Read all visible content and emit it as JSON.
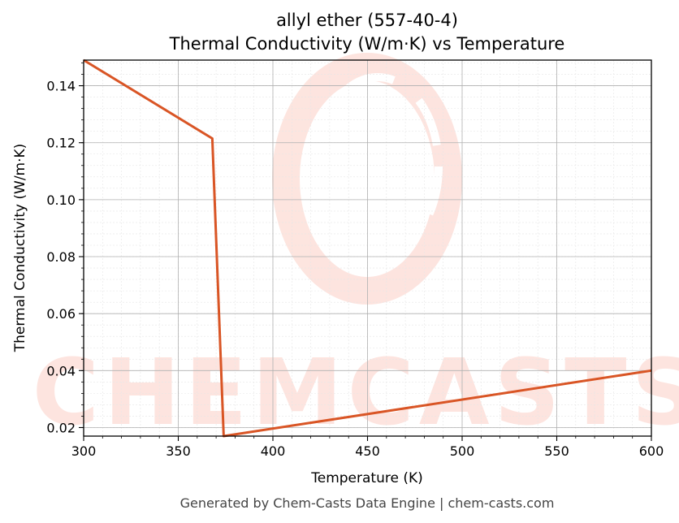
{
  "chart_data": {
    "type": "line",
    "title_line1": "allyl ether (557-40-4)",
    "title_line2": "Thermal Conductivity (W/m·K) vs Temperature",
    "xlabel": "Temperature (K)",
    "ylabel": "Thermal Conductivity (W/m·K)",
    "xlim": [
      300,
      600
    ],
    "ylim": [
      0.017,
      0.149
    ],
    "x_ticks": [
      300,
      350,
      400,
      450,
      500,
      550,
      600
    ],
    "x_tick_labels": [
      "300",
      "350",
      "400",
      "450",
      "500",
      "550",
      "600"
    ],
    "y_ticks": [
      0.02,
      0.04,
      0.06,
      0.08,
      0.1,
      0.12,
      0.14
    ],
    "y_tick_labels": [
      "0.02",
      "0.04",
      "0.06",
      "0.08",
      "0.10",
      "0.12",
      "0.14"
    ],
    "grid": true,
    "series": [
      {
        "color": "#d95525",
        "x": [
          300,
          368,
          374,
          600
        ],
        "y": [
          0.149,
          0.1215,
          0.017,
          0.04
        ]
      }
    ]
  },
  "footer": "Generated by Chem-Casts Data Engine | chem-casts.com",
  "watermark": {
    "text": "CHEMCASTS",
    "color": "#fde2dc"
  }
}
